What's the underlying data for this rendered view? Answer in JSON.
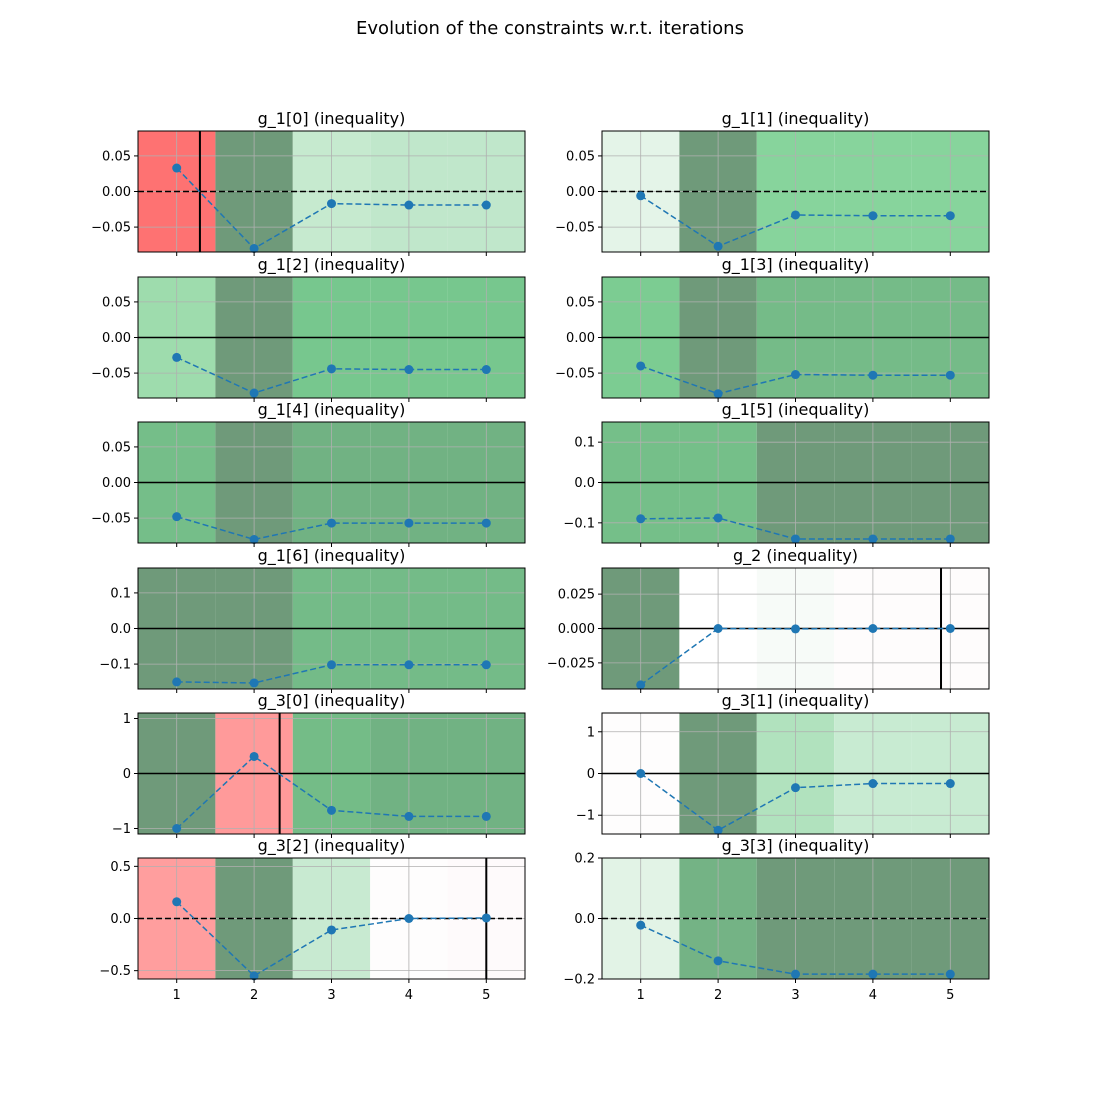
{
  "chart_data": {
    "title": "Evolution of the constraints w.r.t. iterations",
    "x_ticks": [
      "1",
      "2",
      "3",
      "4",
      "5"
    ],
    "subplots": [
      {
        "title": "g_1[0] (inequality)",
        "type": "line",
        "x": [
          1,
          2,
          3,
          4,
          5
        ],
        "values": [
          0.033,
          -0.08,
          -0.017,
          -0.019,
          -0.019
        ],
        "ylim": [
          -0.085,
          0.085
        ],
        "yticks": [
          -0.05,
          0.0,
          0.05
        ],
        "ytick_labels": [
          "−0.05",
          "0.00",
          "0.05"
        ],
        "bg_colors": [
          "#fe7272",
          "#6f9a7a",
          "#c6eacf",
          "#c0e7cb",
          "#c0e7cb"
        ],
        "zero_line": "dashed",
        "vline_x": 1.3
      },
      {
        "title": "g_1[1] (inequality)",
        "type": "line",
        "x": [
          1,
          2,
          3,
          4,
          5
        ],
        "values": [
          -0.006,
          -0.077,
          -0.033,
          -0.034,
          -0.034
        ],
        "ylim": [
          -0.085,
          0.085
        ],
        "yticks": [
          -0.05,
          0.0,
          0.05
        ],
        "ytick_labels": [
          "−0.05",
          "0.00",
          "0.05"
        ],
        "bg_colors": [
          "#e4f4e8",
          "#6f9a7a",
          "#87d49c",
          "#87d49c",
          "#87d49c"
        ],
        "zero_line": "dashed",
        "vline_x": null
      },
      {
        "title": "g_1[2] (inequality)",
        "type": "line",
        "x": [
          1,
          2,
          3,
          4,
          5
        ],
        "values": [
          -0.028,
          -0.078,
          -0.044,
          -0.045,
          -0.045
        ],
        "ylim": [
          -0.085,
          0.085
        ],
        "yticks": [
          -0.05,
          0.0,
          0.05
        ],
        "ytick_labels": [
          "−0.05",
          "0.00",
          "0.05"
        ],
        "bg_colors": [
          "#9edcad",
          "#6f9a7a",
          "#77c78e",
          "#77c78e",
          "#77c78e"
        ],
        "zero_line": "solid",
        "vline_x": null
      },
      {
        "title": "g_1[3] (inequality)",
        "type": "line",
        "x": [
          1,
          2,
          3,
          4,
          5
        ],
        "values": [
          -0.04,
          -0.079,
          -0.052,
          -0.053,
          -0.053
        ],
        "ylim": [
          -0.085,
          0.085
        ],
        "yticks": [
          -0.05,
          0.0,
          0.05
        ],
        "ytick_labels": [
          "−0.05",
          "0.00",
          "0.05"
        ],
        "bg_colors": [
          "#7ccc92",
          "#6f9a7a",
          "#75bb88",
          "#75bb88",
          "#75bb88"
        ],
        "zero_line": "solid",
        "vline_x": null
      },
      {
        "title": "g_1[4] (inequality)",
        "type": "line",
        "x": [
          1,
          2,
          3,
          4,
          5
        ],
        "values": [
          -0.048,
          -0.08,
          -0.057,
          -0.057,
          -0.057
        ],
        "ylim": [
          -0.085,
          0.085
        ],
        "yticks": [
          -0.05,
          0.0,
          0.05
        ],
        "ytick_labels": [
          "−0.05",
          "0.00",
          "0.05"
        ],
        "bg_colors": [
          "#75be89",
          "#6f9a7a",
          "#71b283",
          "#71b283",
          "#71b283"
        ],
        "zero_line": "solid",
        "vline_x": null
      },
      {
        "title": "g_1[5] (inequality)",
        "type": "line",
        "x": [
          1,
          2,
          3,
          4,
          5
        ],
        "values": [
          -0.09,
          -0.088,
          -0.14,
          -0.14,
          -0.14
        ],
        "ylim": [
          -0.15,
          0.15
        ],
        "yticks": [
          -0.1,
          0.0,
          0.1
        ],
        "ytick_labels": [
          "−0.1",
          "0.0",
          "0.1"
        ],
        "bg_colors": [
          "#75bf89",
          "#75bf89",
          "#6f9a7a",
          "#6f9a7a",
          "#6f9a7a"
        ],
        "zero_line": "solid",
        "vline_x": null
      },
      {
        "title": "g_1[6] (inequality)",
        "type": "line",
        "x": [
          1,
          2,
          3,
          4,
          5
        ],
        "values": [
          -0.15,
          -0.153,
          -0.102,
          -0.102,
          -0.102
        ],
        "ylim": [
          -0.17,
          0.17
        ],
        "yticks": [
          -0.1,
          0.0,
          0.1
        ],
        "ytick_labels": [
          "−0.1",
          "0.0",
          "0.1"
        ],
        "bg_colors": [
          "#6f9a7a",
          "#6f9a7a",
          "#74bb88",
          "#74bb88",
          "#74bb88"
        ],
        "zero_line": "solid",
        "vline_x": null
      },
      {
        "title": "g_2 (inequality)",
        "type": "line",
        "x": [
          1,
          2,
          3,
          4,
          5
        ],
        "values": [
          -0.041,
          0.0,
          -0.0003,
          0.0,
          0.0
        ],
        "ylim": [
          -0.044,
          0.044
        ],
        "yticks": [
          -0.025,
          0.0,
          0.025
        ],
        "ytick_labels": [
          "−0.025",
          "0.000",
          "0.025"
        ],
        "bg_colors": [
          "#6f9a7a",
          "#ffffff",
          "#f7fbf8",
          "#fefcfc",
          "#fefcfc"
        ],
        "zero_line": "solid",
        "vline_x": 4.88
      },
      {
        "title": "g_3[0] (inequality)",
        "type": "line",
        "x": [
          1,
          2,
          3,
          4,
          5
        ],
        "values": [
          -1.0,
          0.31,
          -0.67,
          -0.78,
          -0.78
        ],
        "ylim": [
          -1.1,
          1.1
        ],
        "yticks": [
          -1,
          0,
          1
        ],
        "ytick_labels": [
          "−1",
          "0",
          "1"
        ],
        "bg_colors": [
          "#6f9a7a",
          "#ff9a9a",
          "#74bc87",
          "#71b283",
          "#71b283"
        ],
        "zero_line": "solid",
        "vline_x": 2.33
      },
      {
        "title": "g_3[1] (inequality)",
        "type": "line",
        "x": [
          1,
          2,
          3,
          4,
          5
        ],
        "values": [
          0.0,
          -1.36,
          -0.34,
          -0.24,
          -0.24
        ],
        "ylim": [
          -1.45,
          1.45
        ],
        "yticks": [
          -1,
          0,
          1
        ],
        "ytick_labels": [
          "−1",
          "0",
          "1"
        ],
        "bg_colors": [
          "#fefdfd",
          "#6f9a7a",
          "#b1e2be",
          "#c8ebd2",
          "#c8ebd2"
        ],
        "zero_line": "solid",
        "vline_x": null
      },
      {
        "title": "g_3[2] (inequality)",
        "type": "line",
        "x": [
          1,
          2,
          3,
          4,
          5
        ],
        "values": [
          0.16,
          -0.55,
          -0.11,
          0.0,
          0.005
        ],
        "ylim": [
          -0.58,
          0.58
        ],
        "yticks": [
          -0.5,
          0.0,
          0.5
        ],
        "ytick_labels": [
          "−0.5",
          "0.0",
          "0.5"
        ],
        "bg_colors": [
          "#ff9e9e",
          "#6f9a7a",
          "#c8ead1",
          "#fefdfd",
          "#fefafb"
        ],
        "zero_line": "dashed",
        "vline_x": 5.0
      },
      {
        "title": "g_3[3] (inequality)",
        "type": "line",
        "x": [
          1,
          2,
          3,
          4,
          5
        ],
        "values": [
          -0.022,
          -0.14,
          -0.184,
          -0.184,
          -0.184
        ],
        "ylim": [
          -0.2,
          0.2
        ],
        "yticks": [
          -0.2,
          0.0,
          0.2
        ],
        "ytick_labels": [
          "−0.2",
          "0.0",
          "0.2"
        ],
        "bg_colors": [
          "#e2f3e6",
          "#74b385",
          "#6f9a7a",
          "#6f9a7a",
          "#6f9a7a"
        ],
        "zero_line": "dashed",
        "vline_x": null
      }
    ],
    "line_color": "#1f77b4",
    "grid": true
  }
}
